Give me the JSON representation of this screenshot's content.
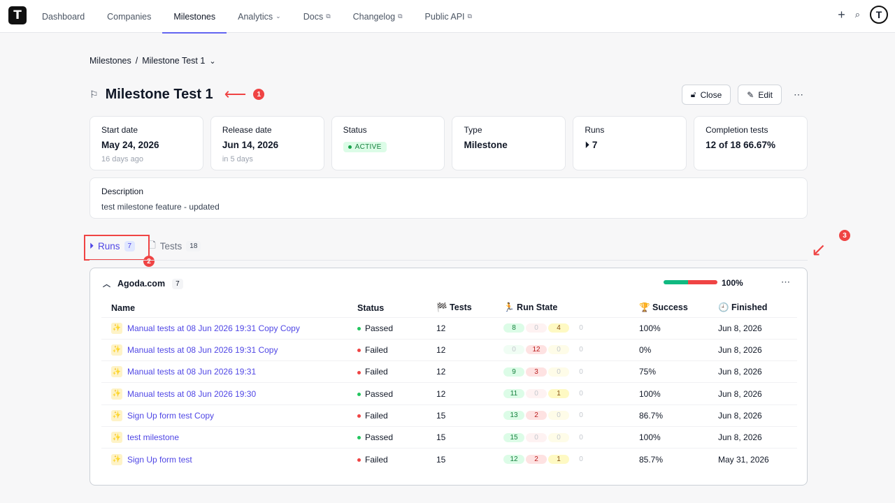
{
  "nav": {
    "logo": "T",
    "items": [
      {
        "label": "Dashboard",
        "ext": ""
      },
      {
        "label": "Companies",
        "ext": ""
      },
      {
        "label": "Milestones",
        "ext": ""
      },
      {
        "label": "Analytics",
        "ext": "⌄"
      },
      {
        "label": "Docs",
        "ext": "⧉"
      },
      {
        "label": "Changelog",
        "ext": "⧉"
      },
      {
        "label": "Public API",
        "ext": "⧉"
      }
    ],
    "active_index": 2,
    "avatar": "T"
  },
  "breadcrumb": {
    "root": "Milestones",
    "sep": "/",
    "current": "Milestone Test 1"
  },
  "page": {
    "title": "Milestone Test 1"
  },
  "annotations": {
    "one": "1",
    "two": "2",
    "three": "3"
  },
  "actions": {
    "close_label": "Close",
    "edit_label": "Edit"
  },
  "cards": {
    "start": {
      "label": "Start date",
      "value": "May 24, 2026",
      "sub": "16 days ago"
    },
    "release": {
      "label": "Release date",
      "value": "Jun 14, 2026",
      "sub": "in 5 days"
    },
    "status": {
      "label": "Status",
      "value": "ACTIVE"
    },
    "type": {
      "label": "Type",
      "value": "Milestone"
    },
    "runs": {
      "label": "Runs",
      "value": "7"
    },
    "completion": {
      "label": "Completion tests",
      "value": "12 of 18 66.67%"
    }
  },
  "description": {
    "label": "Description",
    "text": "test milestone feature - updated"
  },
  "tabs": {
    "runs": {
      "label": "Runs",
      "count": "7"
    },
    "tests": {
      "label": "Tests",
      "count": "18"
    }
  },
  "group": {
    "name": "Agoda.com",
    "count": "7",
    "progress_pct_text": "100%",
    "progress_green_fraction": 0.45,
    "progress_red_fraction": 0.55
  },
  "table": {
    "headers": {
      "name": "Name",
      "status": "Status",
      "tests": "🏁 Tests",
      "run_state": "🏃 Run State",
      "success": "🏆 Success",
      "finished": "🕘 Finished"
    },
    "rows": [
      {
        "name": "Manual tests at 08 Jun 2026 19:31 Copy Copy",
        "status": "Passed",
        "tests": "12",
        "pass": "8",
        "fail": "0",
        "skip": "4",
        "none": "0",
        "success": "100%",
        "finished": "Jun 8, 2026"
      },
      {
        "name": "Manual tests at 08 Jun 2026 19:31 Copy",
        "status": "Failed",
        "tests": "12",
        "pass": "0",
        "fail": "12",
        "skip": "0",
        "none": "0",
        "success": "0%",
        "finished": "Jun 8, 2026"
      },
      {
        "name": "Manual tests at 08 Jun 2026 19:31",
        "status": "Failed",
        "tests": "12",
        "pass": "9",
        "fail": "3",
        "skip": "0",
        "none": "0",
        "success": "75%",
        "finished": "Jun 8, 2026"
      },
      {
        "name": "Manual tests at 08 Jun 2026 19:30",
        "status": "Passed",
        "tests": "12",
        "pass": "11",
        "fail": "0",
        "skip": "1",
        "none": "0",
        "success": "100%",
        "finished": "Jun 8, 2026"
      },
      {
        "name": "Sign Up form test Copy",
        "status": "Failed",
        "tests": "15",
        "pass": "13",
        "fail": "2",
        "skip": "0",
        "none": "0",
        "success": "86.7%",
        "finished": "Jun 8, 2026"
      },
      {
        "name": "test milestone",
        "status": "Passed",
        "tests": "15",
        "pass": "15",
        "fail": "0",
        "skip": "0",
        "none": "0",
        "success": "100%",
        "finished": "Jun 8, 2026"
      },
      {
        "name": "Sign Up form test",
        "status": "Failed",
        "tests": "15",
        "pass": "12",
        "fail": "2",
        "skip": "1",
        "none": "0",
        "success": "85.7%",
        "finished": "May 31, 2026"
      }
    ]
  },
  "colors": {
    "accent": "#4f46e5",
    "passed": "#22c55e",
    "failed": "#ef4444",
    "annotation": "#ef4444"
  }
}
